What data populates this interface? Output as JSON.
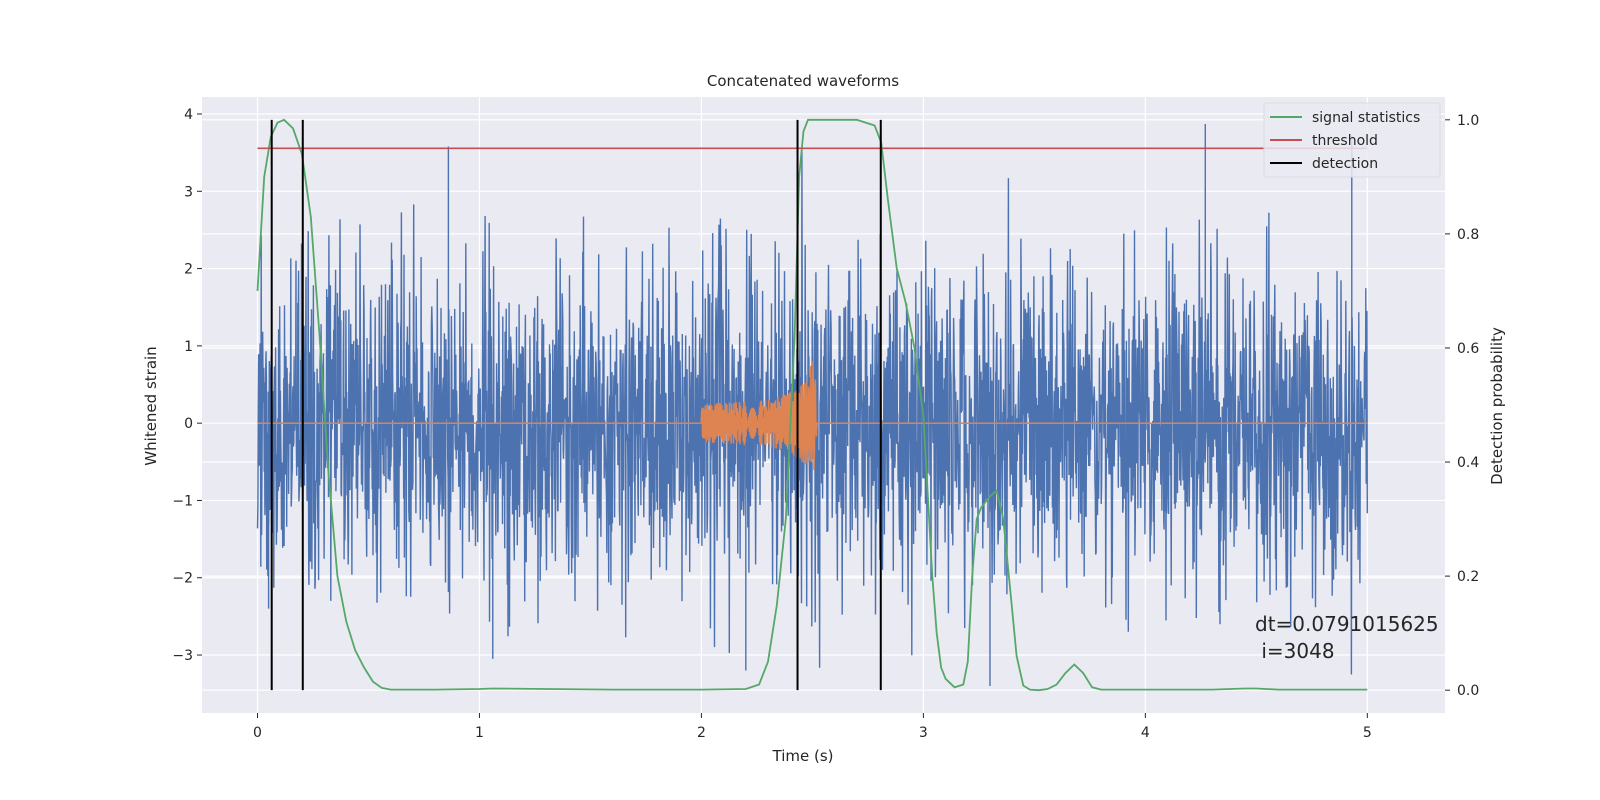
{
  "chart_data": {
    "type": "line",
    "title": "Concatenated waveforms",
    "xlabel": "Time (s)",
    "ylabel": "Whitened strain",
    "ylabel_right": "Detection probability",
    "xlim": [
      -0.25,
      5.35
    ],
    "ylim_left": [
      -3.75,
      4.22
    ],
    "ylim_right": [
      -0.04,
      1.04
    ],
    "xticks": [
      0,
      1,
      2,
      3,
      4,
      5
    ],
    "yticks_left": [
      -3,
      -2,
      -1,
      0,
      1,
      2,
      3,
      4
    ],
    "yticks_right": [
      0.0,
      0.2,
      0.4,
      0.6,
      0.8,
      1.0
    ],
    "xtick_labels": [
      "0",
      "1",
      "2",
      "3",
      "4",
      "5"
    ],
    "ytick_labels_left": [
      "−3",
      "−2",
      "−1",
      "0",
      "1",
      "2",
      "3",
      "4"
    ],
    "ytick_labels_right": [
      "0.0",
      "0.2",
      "0.4",
      "0.6",
      "0.8",
      "1.0"
    ],
    "grid": true,
    "legend_position": "top-right",
    "colors": {
      "strain": "#4c72b0",
      "injection": "#dd8452",
      "signal_statistics": "#55a868",
      "threshold": "#c44e52",
      "detection": "#000000",
      "plot_background": "#eaeaf2",
      "grid": "#ffffff"
    },
    "series": [
      {
        "name": "signal statistics",
        "axis": "right",
        "x": [
          0.0,
          0.03,
          0.06,
          0.09,
          0.12,
          0.16,
          0.2,
          0.24,
          0.28,
          0.32,
          0.36,
          0.4,
          0.44,
          0.48,
          0.52,
          0.56,
          0.6,
          0.8,
          1.0,
          1.06,
          1.3,
          1.6,
          2.0,
          2.2,
          2.26,
          2.3,
          2.34,
          2.38,
          2.42,
          2.44,
          2.46,
          2.48,
          2.52,
          2.6,
          2.7,
          2.78,
          2.81,
          2.84,
          2.88,
          2.92,
          2.96,
          3.0,
          3.04,
          3.06,
          3.08,
          3.1,
          3.14,
          3.18,
          3.2,
          3.22,
          3.24,
          3.26,
          3.28,
          3.3,
          3.33,
          3.36,
          3.39,
          3.42,
          3.45,
          3.48,
          3.52,
          3.56,
          3.6,
          3.64,
          3.68,
          3.72,
          3.76,
          3.8,
          4.0,
          4.3,
          4.45,
          4.5,
          4.6,
          5.0
        ],
        "values": [
          0.7,
          0.9,
          0.97,
          0.995,
          1.0,
          0.985,
          0.94,
          0.83,
          0.62,
          0.38,
          0.2,
          0.12,
          0.07,
          0.04,
          0.015,
          0.004,
          0.001,
          0.001,
          0.002,
          0.003,
          0.002,
          0.001,
          0.001,
          0.002,
          0.01,
          0.05,
          0.15,
          0.3,
          0.62,
          0.9,
          0.98,
          1.0,
          1.0,
          1.0,
          1.0,
          0.99,
          0.96,
          0.86,
          0.74,
          0.68,
          0.6,
          0.48,
          0.2,
          0.1,
          0.04,
          0.02,
          0.005,
          0.01,
          0.05,
          0.2,
          0.3,
          0.32,
          0.33,
          0.34,
          0.35,
          0.3,
          0.18,
          0.06,
          0.008,
          0.001,
          0.0,
          0.002,
          0.01,
          0.03,
          0.045,
          0.03,
          0.005,
          0.001,
          0.001,
          0.001,
          0.003,
          0.003,
          0.001,
          0.001
        ]
      },
      {
        "name": "threshold",
        "axis": "right",
        "x": [
          0.0,
          5.0
        ],
        "values": [
          0.95,
          0.95
        ]
      },
      {
        "name": "detection",
        "axis": "right",
        "type": "vlines",
        "x": [
          0.064,
          0.204,
          2.433,
          2.808
        ],
        "y_range": [
          0.0,
          1.0
        ]
      },
      {
        "axis": "left",
        "type": "noise",
        "x_range": [
          0.0,
          5.0
        ],
        "typical_amplitude": 1.0,
        "max": 3.87,
        "min": -3.4
      },
      {
        "axis": "left",
        "type": "chirp",
        "x": [
          0.0,
          2.0,
          2.0,
          2.3,
          2.4,
          2.48,
          2.5,
          2.51,
          2.52,
          2.55,
          5.0
        ],
        "values_upper": [
          0.0,
          0.0,
          0.25,
          0.3,
          0.4,
          0.55,
          0.85,
          0.9,
          0.05,
          0.0,
          0.0
        ],
        "values_lower": [
          0.0,
          0.0,
          -0.25,
          -0.3,
          -0.4,
          -0.55,
          -0.55,
          -0.65,
          -0.05,
          0.0,
          0.0
        ]
      }
    ],
    "annotation": {
      "line1": "dt=0.0791015625",
      "line2": " i=3048"
    }
  }
}
